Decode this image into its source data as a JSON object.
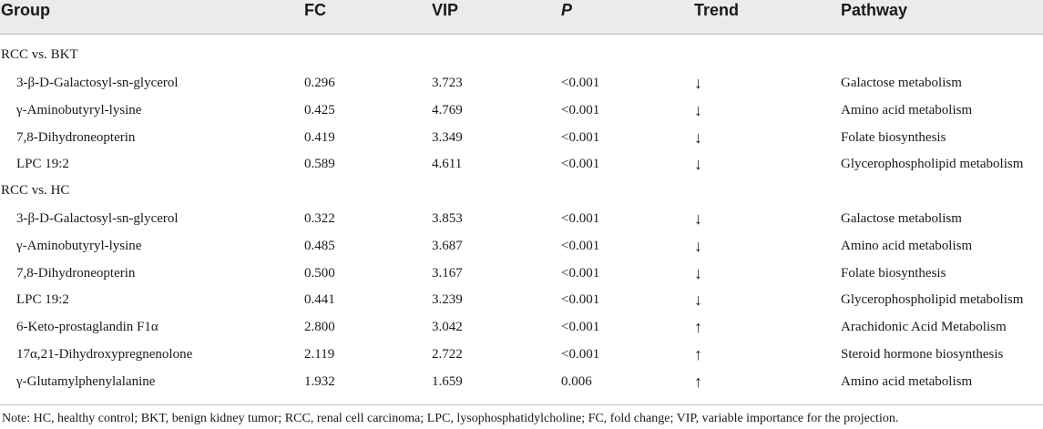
{
  "headers": {
    "group": "Group",
    "fc": "FC",
    "vip": "VIP",
    "p": "P",
    "trend": "Trend",
    "pathway": "Pathway"
  },
  "sections": [
    {
      "label": "RCC vs. BKT",
      "rows": [
        {
          "group": "3-β-D-Galactosyl-sn-glycerol",
          "fc": "0.296",
          "vip": "3.723",
          "p": "<0.001",
          "trend": "↓",
          "pathway": "Galactose metabolism"
        },
        {
          "group": "γ-Aminobutyryl-lysine",
          "fc": "0.425",
          "vip": "4.769",
          "p": "<0.001",
          "trend": "↓",
          "pathway": "Amino acid metabolism"
        },
        {
          "group": "7,8-Dihydroneopterin",
          "fc": "0.419",
          "vip": "3.349",
          "p": "<0.001",
          "trend": "↓",
          "pathway": "Folate biosynthesis"
        },
        {
          "group": "LPC 19:2",
          "fc": "0.589",
          "vip": "4.611",
          "p": "<0.001",
          "trend": "↓",
          "pathway": "Glycerophospholipid metabolism"
        }
      ]
    },
    {
      "label": "RCC vs. HC",
      "rows": [
        {
          "group": "3-β-D-Galactosyl-sn-glycerol",
          "fc": "0.322",
          "vip": "3.853",
          "p": "<0.001",
          "trend": "↓",
          "pathway": "Galactose metabolism"
        },
        {
          "group": "γ-Aminobutyryl-lysine",
          "fc": "0.485",
          "vip": "3.687",
          "p": "<0.001",
          "trend": "↓",
          "pathway": "Amino acid metabolism"
        },
        {
          "group": "7,8-Dihydroneopterin",
          "fc": "0.500",
          "vip": "3.167",
          "p": "<0.001",
          "trend": "↓",
          "pathway": "Folate biosynthesis"
        },
        {
          "group": "LPC 19:2",
          "fc": "0.441",
          "vip": "3.239",
          "p": "<0.001",
          "trend": "↓",
          "pathway": "Glycerophospholipid metabolism"
        },
        {
          "group": "6-Keto-prostaglandin F1α",
          "fc": "2.800",
          "vip": "3.042",
          "p": "<0.001",
          "trend": "↑",
          "pathway": "Arachidonic Acid Metabolism"
        },
        {
          "group": "17α,21-Dihydroxypregnenolone",
          "fc": "2.119",
          "vip": "2.722",
          "p": "<0.001",
          "trend": "↑",
          "pathway": "Steroid hormone biosynthesis"
        },
        {
          "group": "γ-Glutamylphenylalanine",
          "fc": "1.932",
          "vip": "1.659",
          "p": "0.006",
          "trend": "↑",
          "pathway": "Amino acid metabolism"
        }
      ]
    }
  ],
  "note": "Note: HC, healthy control; BKT, benign kidney tumor; RCC, renal cell carcinoma; LPC, lysophosphatidylcholine; FC, fold change; VIP, variable importance for the projection."
}
